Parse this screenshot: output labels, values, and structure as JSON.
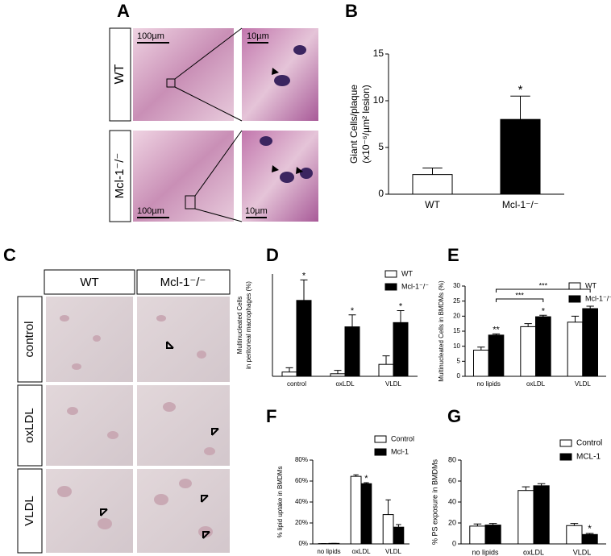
{
  "panel_labels": [
    "A",
    "B",
    "C",
    "D",
    "E",
    "F",
    "G"
  ],
  "panel_a": {
    "rows": [
      "WT",
      "Mcl-1⁻/⁻"
    ],
    "scale_bars": [
      [
        "100µm",
        "10µm"
      ],
      [
        "100µm",
        "10µm"
      ]
    ]
  },
  "panel_c": {
    "columns": [
      "WT",
      "Mcl-1⁻/⁻"
    ],
    "rows": [
      "control",
      "oxLDL",
      "VLDL"
    ]
  },
  "chart_data": [
    {
      "type": "bar",
      "ylabel": [
        "Giant Cells/plaque",
        "(x10⁻⁶/µm² lesion)"
      ],
      "categories": [
        "WT",
        "Mcl-1⁻/⁻"
      ],
      "values": [
        2.1,
        8.0
      ],
      "errors": [
        0.7,
        2.5
      ],
      "colors": [
        "#ffffff",
        "#000000"
      ],
      "significance": [
        null,
        "*"
      ],
      "ylim": [
        0,
        15
      ],
      "yticks": [
        0,
        5,
        10,
        15
      ]
    },
    {
      "type": "bar",
      "ylabel": [
        "Multinucleated Cells",
        "in peritoneal macrophages (%)"
      ],
      "categories": [
        "control",
        "oxLDL",
        "VLDL"
      ],
      "series": [
        {
          "name": "WT",
          "color": "#ffffff",
          "values": [
            2.5,
            1.5,
            7
          ],
          "errors": [
            2.5,
            2,
            5
          ],
          "significance": [
            null,
            null,
            null
          ]
        },
        {
          "name": "Mcl-1⁻/⁻",
          "color": "#000000",
          "values": [
            44.5,
            29,
            31.5
          ],
          "errors": [
            12,
            7,
            7
          ],
          "significance": [
            "*",
            "*",
            "*"
          ]
        }
      ],
      "ylim": [
        0,
        60
      ],
      "legend": "upper right"
    },
    {
      "type": "bar",
      "ylabel": [
        "Multinucleated Cells in BMDMs (%)"
      ],
      "categories": [
        "no lipids",
        "oxLDL",
        "VLDL"
      ],
      "series": [
        {
          "name": "WT",
          "color": "#ffffff",
          "values": [
            8.7,
            16.5,
            18
          ],
          "errors": [
            1,
            1,
            2
          ],
          "significance": [
            null,
            null,
            null
          ]
        },
        {
          "name": "Mcl-1⁻/⁻",
          "color": "#000000",
          "values": [
            13.7,
            19.8,
            22.5
          ],
          "errors": [
            0.4,
            0.5,
            0.8
          ],
          "significance": [
            "**",
            "*",
            null
          ]
        }
      ],
      "brackets": [
        "***",
        "***"
      ],
      "ylim": [
        0,
        30
      ],
      "yticks": [
        0,
        5,
        10,
        15,
        20,
        25,
        30
      ],
      "legend": "upper right"
    },
    {
      "type": "bar",
      "ylabel": [
        "% lipid uptake in BMDMs"
      ],
      "categories": [
        "no lipids",
        "oxLDL",
        "VLDL"
      ],
      "series": [
        {
          "name": "Control",
          "color": "#ffffff",
          "values": [
            0.3,
            64.5,
            28
          ],
          "errors": [
            0,
            1.5,
            14
          ],
          "significance": [
            null,
            null,
            null
          ]
        },
        {
          "name": "Mcl-1",
          "color": "#000000",
          "values": [
            0.5,
            57.5,
            16
          ],
          "errors": [
            0,
            1,
            2.5
          ],
          "significance": [
            null,
            "*",
            null
          ]
        }
      ],
      "ylim": [
        0,
        80
      ],
      "yticks": [
        {
          "value": 0,
          "label": "0%"
        },
        {
          "value": 20,
          "label": "20%"
        },
        {
          "value": 40,
          "label": "40%"
        },
        {
          "value": 60,
          "label": "60%"
        },
        {
          "value": 80,
          "label": "80%"
        }
      ],
      "legend": "upper right"
    },
    {
      "type": "bar",
      "ylabel": [
        "% PS exposure in BMDMs"
      ],
      "categories": [
        "no lipids",
        "oxLDL",
        "VLDL"
      ],
      "series": [
        {
          "name": "Control",
          "color": "#ffffff",
          "values": [
            17,
            51,
            17.5
          ],
          "errors": [
            2,
            3.5,
            2
          ],
          "significance": [
            null,
            null,
            null
          ]
        },
        {
          "name": "MCL-1",
          "color": "#000000",
          "values": [
            18,
            55.5,
            9
          ],
          "errors": [
            1.5,
            2,
            1
          ],
          "significance": [
            null,
            null,
            "*"
          ]
        }
      ],
      "ylim": [
        0,
        80
      ],
      "yticks": [
        0,
        20,
        40,
        60,
        80
      ],
      "legend": "upper right"
    }
  ]
}
